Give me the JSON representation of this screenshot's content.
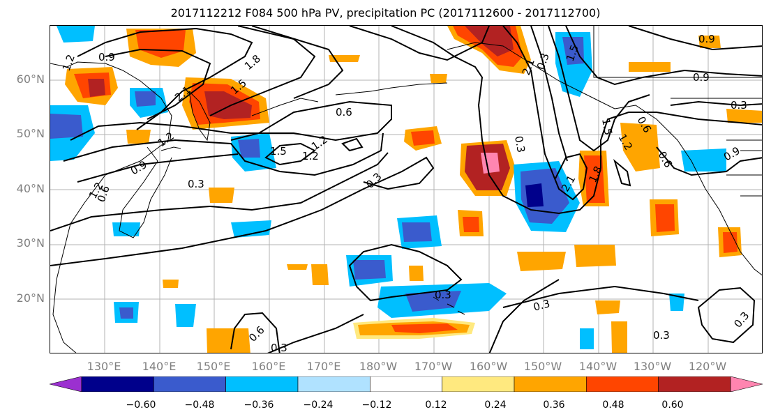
{
  "title": "2017112212 F084 500 hPa PV, precipitation PC (2017112600 - 2017112700)",
  "lat_labels": [
    "60°N",
    "50°N",
    "40°N",
    "30°N",
    "20°N"
  ],
  "lon_labels": [
    "130°E",
    "140°E",
    "150°E",
    "160°E",
    "170°E",
    "180°W",
    "170°W",
    "160°W",
    "150°W",
    "140°W",
    "130°W",
    "120°W"
  ],
  "contour_labels": [
    "1.2",
    "0.9",
    "1.8",
    "1.5",
    "2.1",
    "1.2",
    "0.9",
    "1.2",
    "1.5",
    "1.2",
    "0.6",
    "0.3",
    "0.6",
    "0.3",
    "0.3",
    "0.3",
    "0.3",
    "0.3",
    "0.6",
    "0.3",
    "0.3",
    "2.1",
    "1.5",
    "0.3",
    "2.1",
    "1.8",
    "0.9",
    "1.5",
    "0.9",
    "0.3",
    "0.6",
    "0.9",
    "0.6",
    "1.2",
    "1.2"
  ],
  "colorbar": {
    "ticks": [
      "−0.60",
      "−0.48",
      "−0.36",
      "−0.24",
      "−0.12",
      "0.12",
      "0.24",
      "0.36",
      "0.48",
      "0.60"
    ],
    "colors": [
      "#9b30d0",
      "#00008b",
      "#3a5bcd",
      "#00bfff",
      "#b0e2ff",
      "#ffffff",
      "#ffe97f",
      "#ffa500",
      "#ff4500",
      "#b22222",
      "#ff85b0"
    ]
  }
}
